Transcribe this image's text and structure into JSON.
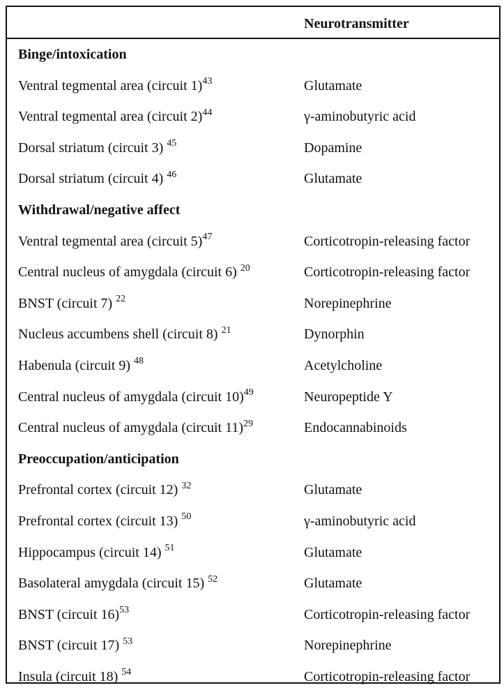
{
  "table": {
    "header": {
      "col1": "",
      "col2": "Neurotransmitter"
    },
    "rows": [
      {
        "kind": "section",
        "label": "Binge/intoxication"
      },
      {
        "kind": "data",
        "region": "Ventral tegmental area (circuit 1)",
        "ref": "43",
        "nt": "Glutamate"
      },
      {
        "kind": "data",
        "region": "Ventral tegmental area (circuit 2)",
        "ref": "44",
        "nt": "γ-aminobutyric acid"
      },
      {
        "kind": "data",
        "region": "Dorsal striatum (circuit 3) ",
        "ref": "45",
        "nt": "Dopamine"
      },
      {
        "kind": "data",
        "region": "Dorsal striatum (circuit 4) ",
        "ref": "46",
        "nt": "Glutamate"
      },
      {
        "kind": "section",
        "label": "Withdrawal/negative affect"
      },
      {
        "kind": "data",
        "region": "Ventral tegmental area (circuit 5)",
        "ref": "47",
        "nt": "Corticotropin-releasing factor"
      },
      {
        "kind": "data",
        "region": "Central nucleus of amygdala (circuit 6) ",
        "ref": "20",
        "nt": "Corticotropin-releasing factor"
      },
      {
        "kind": "data",
        "region": "BNST (circuit 7) ",
        "ref": "22",
        "nt": "Norepinephrine"
      },
      {
        "kind": "data",
        "region": "Nucleus accumbens shell (circuit 8) ",
        "ref": "21",
        "nt": "Dynorphin"
      },
      {
        "kind": "data",
        "region": "Habenula (circuit 9) ",
        "ref": "48",
        "nt": "Acetylcholine"
      },
      {
        "kind": "data",
        "region": "Central nucleus of amygdala (circuit 10)",
        "ref": "49",
        "nt": "Neuropeptide Y"
      },
      {
        "kind": "data",
        "region": "Central nucleus of amygdala (circuit 11)",
        "ref": "29",
        "nt": "Endocannabinoids"
      },
      {
        "kind": "section",
        "label": "Preoccupation/anticipation"
      },
      {
        "kind": "data",
        "region": "Prefrontal cortex (circuit 12) ",
        "ref": "32",
        "nt": "Glutamate"
      },
      {
        "kind": "data",
        "region": "Prefrontal cortex (circuit 13) ",
        "ref": "50",
        "nt": "γ-aminobutyric acid"
      },
      {
        "kind": "data",
        "region": "Hippocampus (circuit 14) ",
        "ref": "51",
        "nt": "Glutamate"
      },
      {
        "kind": "data",
        "region": "Basolateral amygdala (circuit 15) ",
        "ref": "52",
        "nt": "Glutamate"
      },
      {
        "kind": "data",
        "region": "BNST (circuit 16)",
        "ref": "53",
        "nt": "Corticotropin-releasing factor"
      },
      {
        "kind": "data",
        "region": "BNST (circuit 17) ",
        "ref": "53",
        "nt": "Norepinephrine"
      },
      {
        "kind": "data",
        "region": "Insula (circuit 18) ",
        "ref": "54",
        "nt": "Corticotropin-releasing factor"
      }
    ]
  }
}
